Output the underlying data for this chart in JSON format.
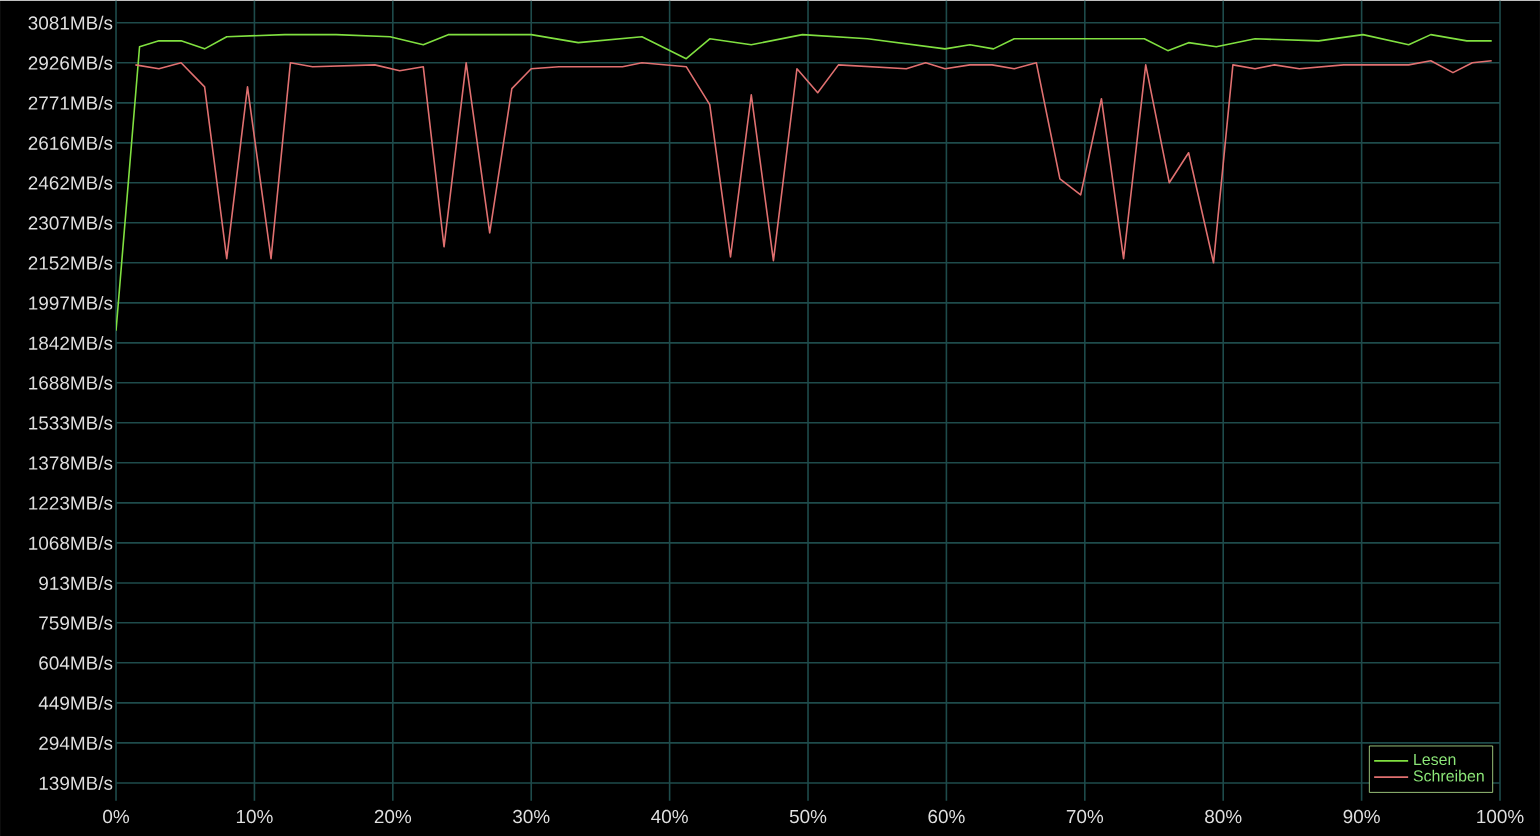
{
  "chart_data": {
    "type": "line",
    "xlim": [
      0,
      100
    ],
    "xticks": [
      {
        "value": 0,
        "label": "0%"
      },
      {
        "value": 10,
        "label": "10%"
      },
      {
        "value": 20,
        "label": "20%"
      },
      {
        "value": 30,
        "label": "30%"
      },
      {
        "value": 40,
        "label": "40%"
      },
      {
        "value": 50,
        "label": "50%"
      },
      {
        "value": 60,
        "label": "60%"
      },
      {
        "value": 70,
        "label": "70%"
      },
      {
        "value": 80,
        "label": "80%"
      },
      {
        "value": 90,
        "label": "90%"
      },
      {
        "value": 100,
        "label": "100%"
      }
    ],
    "ylim": [
      70,
      3166
    ],
    "yticks": [
      {
        "value": 139,
        "label": "139MB/s"
      },
      {
        "value": 294,
        "label": "294MB/s"
      },
      {
        "value": 449,
        "label": "449MB/s"
      },
      {
        "value": 604,
        "label": "604MB/s"
      },
      {
        "value": 759,
        "label": "759MB/s"
      },
      {
        "value": 913,
        "label": "913MB/s"
      },
      {
        "value": 1068,
        "label": "1068MB/s"
      },
      {
        "value": 1223,
        "label": "1223MB/s"
      },
      {
        "value": 1378,
        "label": "1378MB/s"
      },
      {
        "value": 1533,
        "label": "1533MB/s"
      },
      {
        "value": 1688,
        "label": "1688MB/s"
      },
      {
        "value": 1842,
        "label": "1842MB/s"
      },
      {
        "value": 1997,
        "label": "1997MB/s"
      },
      {
        "value": 2152,
        "label": "2152MB/s"
      },
      {
        "value": 2307,
        "label": "2307MB/s"
      },
      {
        "value": 2462,
        "label": "2462MB/s"
      },
      {
        "value": 2616,
        "label": "2616MB/s"
      },
      {
        "value": 2771,
        "label": "2771MB/s"
      },
      {
        "value": 2926,
        "label": "2926MB/s"
      },
      {
        "value": 3081,
        "label": "3081MB/s"
      }
    ],
    "grid": true,
    "legend": "bottom right",
    "marker": "none",
    "line_style": "solid",
    "series": [
      {
        "name": "Lesen",
        "color": "#80e040",
        "x": [
          0,
          1.7,
          3.1,
          4.7,
          6.4,
          8.0,
          12.2,
          15.9,
          19.8,
          22.2,
          24.0,
          26.8,
          30.0,
          33.4,
          38.0,
          41.2,
          42.9,
          45.9,
          49.6,
          54.3,
          59.9,
          61.7,
          63.4,
          64.9,
          69.7,
          74.3,
          76.0,
          77.5,
          79.5,
          82.3,
          86.9,
          90.1,
          93.4,
          95.0,
          97.6,
          99.4
        ],
        "values": [
          1889,
          2988,
          3011,
          3011,
          2980,
          3027,
          3035,
          3035,
          3027,
          2996,
          3035,
          3035,
          3035,
          3004,
          3027,
          2942,
          3019,
          2996,
          3035,
          3019,
          2980,
          2996,
          2980,
          3019,
          3019,
          3019,
          2973,
          3004,
          2988,
          3019,
          3011,
          3035,
          2996,
          3035,
          3011,
          3011
        ]
      },
      {
        "name": "Schreiben",
        "color": "#e07070",
        "x": [
          1.4,
          3.1,
          4.7,
          6.4,
          8.0,
          9.5,
          11.2,
          12.6,
          14.2,
          18.7,
          20.5,
          22.2,
          23.7,
          25.3,
          27.0,
          28.6,
          30.0,
          32.0,
          36.6,
          38.0,
          41.2,
          42.9,
          44.4,
          45.9,
          47.5,
          49.2,
          50.7,
          52.2,
          57.1,
          58.5,
          59.9,
          61.7,
          63.3,
          64.9,
          66.5,
          68.2,
          69.7,
          71.2,
          72.8,
          74.4,
          76.1,
          77.5,
          79.3,
          80.7,
          82.3,
          83.7,
          85.5,
          88.7,
          93.4,
          95.0,
          96.6,
          98.0,
          99.4
        ],
        "values": [
          2918,
          2903,
          2926,
          2833,
          2168,
          2833,
          2168,
          2926,
          2911,
          2918,
          2895,
          2911,
          2214,
          2926,
          2268,
          2826,
          2903,
          2911,
          2911,
          2926,
          2911,
          2764,
          2175,
          2802,
          2160,
          2903,
          2810,
          2918,
          2903,
          2926,
          2903,
          2918,
          2918,
          2903,
          2926,
          2477,
          2415,
          2787,
          2168,
          2918,
          2462,
          2578,
          2152,
          2918,
          2903,
          2918,
          2903,
          2918,
          2918,
          2934,
          2888,
          2926,
          2934
        ]
      }
    ]
  }
}
